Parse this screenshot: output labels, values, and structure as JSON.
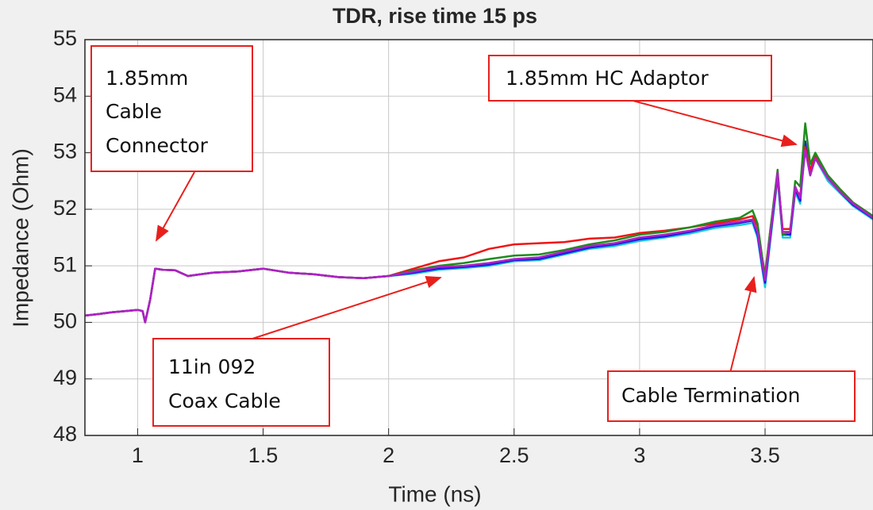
{
  "chart_data": {
    "type": "line",
    "title": "TDR, rise time 15 ps",
    "xlabel": "Time (ns)",
    "ylabel": "Impedance (Ohm)",
    "xlim": [
      0.79,
      3.93
    ],
    "ylim": [
      48,
      55
    ],
    "xticks": [
      1,
      1.5,
      2,
      2.5,
      3,
      3.5
    ],
    "yticks": [
      48,
      49,
      50,
      51,
      52,
      53,
      54,
      55
    ],
    "grid": true,
    "x": [
      0.79,
      0.85,
      0.9,
      0.95,
      1.0,
      1.02,
      1.03,
      1.05,
      1.07,
      1.1,
      1.15,
      1.2,
      1.3,
      1.4,
      1.5,
      1.6,
      1.7,
      1.8,
      1.9,
      2.0,
      2.1,
      2.2,
      2.3,
      2.4,
      2.5,
      2.6,
      2.7,
      2.8,
      2.9,
      3.0,
      3.1,
      3.2,
      3.3,
      3.4,
      3.45,
      3.47,
      3.49,
      3.5,
      3.52,
      3.55,
      3.57,
      3.6,
      3.62,
      3.64,
      3.66,
      3.68,
      3.7,
      3.75,
      3.8,
      3.85,
      3.93
    ],
    "series": [
      {
        "color": "#19c9d6",
        "values": [
          50.12,
          50.15,
          50.18,
          50.2,
          50.22,
          50.2,
          50.0,
          50.4,
          50.95,
          50.93,
          50.92,
          50.82,
          50.88,
          50.9,
          50.95,
          50.88,
          50.85,
          50.8,
          50.78,
          50.82,
          50.86,
          50.93,
          50.96,
          51.0,
          51.08,
          51.1,
          51.2,
          51.3,
          51.35,
          51.44,
          51.5,
          51.57,
          51.67,
          51.72,
          51.76,
          51.5,
          50.9,
          50.62,
          51.4,
          52.55,
          51.5,
          51.5,
          52.3,
          52.1,
          53.1,
          52.6,
          52.9,
          52.5,
          52.28,
          52.06,
          51.82
        ]
      },
      {
        "color": "#1a1ae6",
        "values": [
          50.12,
          50.15,
          50.18,
          50.2,
          50.22,
          50.2,
          50.0,
          50.4,
          50.95,
          50.93,
          50.92,
          50.82,
          50.88,
          50.9,
          50.95,
          50.88,
          50.85,
          50.8,
          50.78,
          50.82,
          50.88,
          50.95,
          50.98,
          51.02,
          51.1,
          51.12,
          51.22,
          51.32,
          51.38,
          51.47,
          51.52,
          51.6,
          51.7,
          51.76,
          51.8,
          51.55,
          50.95,
          50.7,
          51.45,
          52.6,
          51.55,
          51.55,
          52.35,
          52.15,
          53.2,
          52.65,
          52.95,
          52.55,
          52.3,
          52.08,
          51.84
        ]
      },
      {
        "color": "#f01414",
        "values": [
          50.12,
          50.15,
          50.18,
          50.2,
          50.22,
          50.2,
          50.0,
          50.4,
          50.95,
          50.93,
          50.92,
          50.82,
          50.88,
          50.9,
          50.95,
          50.88,
          50.85,
          50.8,
          50.78,
          50.82,
          50.95,
          51.08,
          51.15,
          51.3,
          51.38,
          51.4,
          51.42,
          51.48,
          51.5,
          51.58,
          51.62,
          51.68,
          51.75,
          51.82,
          51.88,
          51.7,
          51.1,
          50.85,
          51.6,
          52.6,
          51.65,
          51.65,
          52.35,
          52.25,
          53.1,
          52.7,
          52.95,
          52.6,
          52.35,
          52.12,
          51.88
        ]
      },
      {
        "color": "#1e8c1e",
        "values": [
          50.12,
          50.15,
          50.18,
          50.2,
          50.22,
          50.2,
          50.0,
          50.4,
          50.95,
          50.93,
          50.92,
          50.82,
          50.88,
          50.9,
          50.95,
          50.88,
          50.85,
          50.8,
          50.78,
          50.82,
          50.92,
          51.0,
          51.05,
          51.12,
          51.18,
          51.2,
          51.28,
          51.38,
          51.45,
          51.55,
          51.6,
          51.68,
          51.78,
          51.85,
          51.98,
          51.75,
          51.1,
          50.8,
          51.6,
          52.7,
          51.55,
          51.6,
          52.5,
          52.4,
          53.52,
          52.8,
          53.0,
          52.6,
          52.35,
          52.12,
          51.88
        ]
      },
      {
        "color": "#b020c8",
        "values": [
          50.12,
          50.15,
          50.18,
          50.2,
          50.22,
          50.2,
          50.0,
          50.4,
          50.95,
          50.93,
          50.92,
          50.82,
          50.88,
          50.9,
          50.95,
          50.88,
          50.85,
          50.8,
          50.78,
          50.82,
          50.9,
          50.98,
          51.0,
          51.05,
          51.12,
          51.15,
          51.25,
          51.35,
          51.4,
          51.5,
          51.55,
          51.62,
          51.72,
          51.78,
          51.82,
          51.6,
          51.0,
          50.75,
          51.5,
          52.65,
          51.6,
          51.6,
          52.4,
          52.2,
          53.05,
          52.6,
          52.9,
          52.55,
          52.3,
          52.1,
          51.85
        ]
      }
    ],
    "annotations": [
      {
        "text": [
          "1.85mm",
          "Cable",
          "Connector"
        ]
      },
      {
        "text": [
          "1.85mm HC Adaptor"
        ]
      },
      {
        "text": [
          "11in 092",
          "Coax Cable"
        ]
      },
      {
        "text": [
          "Cable Termination"
        ]
      }
    ]
  }
}
